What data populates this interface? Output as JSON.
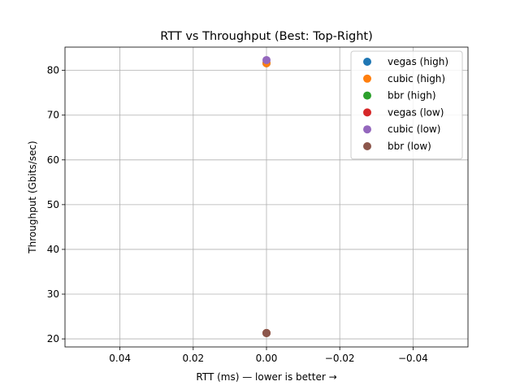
{
  "chart_data": {
    "type": "scatter",
    "title": "RTT vs Throughput (Best: Top-Right)",
    "xlabel": "RTT (ms) — lower is better →",
    "ylabel": "Throughput (Gbits/sec)",
    "xlim": [
      0.055,
      -0.055
    ],
    "ylim": [
      18.2,
      85.2
    ],
    "x_inverted": true,
    "grid": true,
    "legend_position": "top-right",
    "x_ticks": [
      0.04,
      0.02,
      0.0,
      -0.02,
      -0.04
    ],
    "x_tick_labels": [
      "0.04",
      "0.02",
      "0.00",
      "−0.02",
      "−0.04"
    ],
    "y_ticks": [
      20,
      30,
      40,
      50,
      60,
      70,
      80
    ],
    "y_tick_labels": [
      "20",
      "30",
      "40",
      "50",
      "60",
      "70",
      "80"
    ],
    "series": [
      {
        "name": "vegas (high)",
        "color": "#1f77b4",
        "points": [
          {
            "x": 0.0,
            "y": 81.6
          }
        ]
      },
      {
        "name": "cubic (high)",
        "color": "#ff7f0e",
        "points": [
          {
            "x": 0.0,
            "y": 81.6
          }
        ]
      },
      {
        "name": "bbr (high)",
        "color": "#2ca02c",
        "points": [
          {
            "x": 0.0,
            "y": 21.3
          }
        ]
      },
      {
        "name": "vegas (low)",
        "color": "#d62728",
        "points": [
          {
            "x": 0.0,
            "y": 21.3
          }
        ]
      },
      {
        "name": "cubic (low)",
        "color": "#9467bd",
        "points": [
          {
            "x": 0.0,
            "y": 82.3
          }
        ]
      },
      {
        "name": "bbr (low)",
        "color": "#8c564b",
        "points": [
          {
            "x": 0.0,
            "y": 21.3
          }
        ]
      }
    ]
  }
}
